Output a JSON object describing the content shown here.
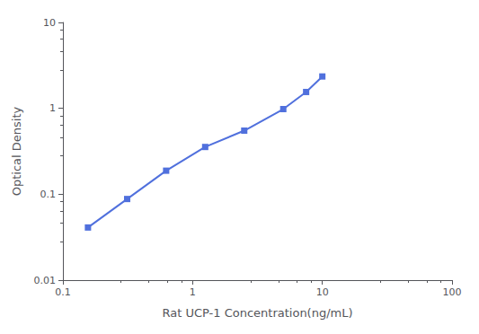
{
  "chart_data": {
    "type": "line",
    "x": [
      0.156,
      0.313,
      0.625,
      1.25,
      2.5,
      5.0,
      7.5,
      10.0
    ],
    "values": [
      0.041,
      0.088,
      0.188,
      0.355,
      0.55,
      0.98,
      1.55,
      2.35
    ],
    "xlabel": "Rat UCP-1 Concentration(ng/mL)",
    "ylabel": "Optical Density",
    "log": true,
    "xlim": [
      0.1,
      100
    ],
    "ylim": [
      0.01,
      10
    ],
    "xticks": [
      0.1,
      1,
      10,
      100
    ],
    "yticks": [
      0.01,
      0.1,
      1,
      10
    ],
    "marker": "square",
    "grid": false
  }
}
